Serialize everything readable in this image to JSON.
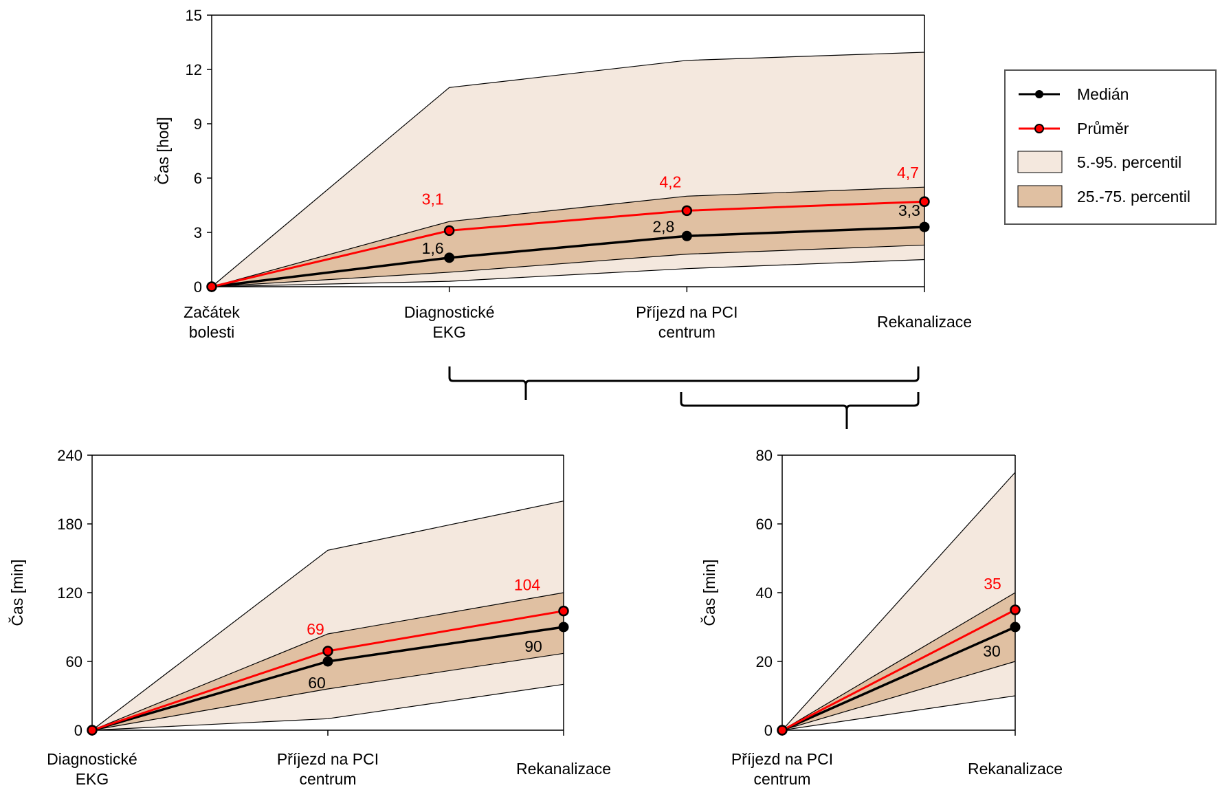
{
  "colors": {
    "band_outer": "#f4e8de",
    "band_inner": "#e0c0a2",
    "median": "#000000",
    "mean": "#ff0000",
    "axis": "#000000"
  },
  "legend": {
    "median": "Medián",
    "mean": "Průměr",
    "p5_95": "5.-95. percentil",
    "p25_75": "25.-75. percentil"
  },
  "chart_data": [
    {
      "type": "area",
      "ylabel": "Čas [hod]",
      "ylim": [
        0,
        15
      ],
      "yticks": [
        "0",
        "3",
        "6",
        "9",
        "12",
        "15"
      ],
      "categories": [
        [
          "Začátek",
          "bolesti"
        ],
        [
          "Diagnostické",
          "EKG"
        ],
        [
          "Příjezd na PCI",
          "centrum"
        ],
        [
          "Rekanalizace"
        ]
      ],
      "p5": [
        0,
        0.3,
        1.0,
        1.5
      ],
      "p95": [
        0,
        11.0,
        12.5,
        12.95
      ],
      "p25": [
        0,
        0.8,
        1.8,
        2.3
      ],
      "p75": [
        0,
        3.6,
        5.0,
        5.5
      ],
      "median": [
        0,
        1.6,
        2.8,
        3.3
      ],
      "mean": [
        0,
        3.1,
        4.2,
        4.7
      ],
      "median_labels": [
        "",
        "1,6",
        "2,8",
        "3,3"
      ],
      "mean_labels": [
        "",
        "3,1",
        "4,2",
        "4,7"
      ]
    },
    {
      "type": "area",
      "ylabel": "Čas [min]",
      "ylim": [
        0,
        240
      ],
      "yticks": [
        "0",
        "60",
        "120",
        "180",
        "240"
      ],
      "categories": [
        [
          "Diagnostické",
          "EKG"
        ],
        [
          "Příjezd na PCI",
          "centrum"
        ],
        [
          "Rekanalizace"
        ]
      ],
      "p5": [
        0,
        10,
        40
      ],
      "p95": [
        0,
        157,
        200
      ],
      "p25": [
        0,
        36,
        67
      ],
      "p75": [
        0,
        84,
        120
      ],
      "median": [
        0,
        60,
        90
      ],
      "mean": [
        0,
        69,
        104
      ],
      "median_labels": [
        "",
        "60",
        "90"
      ],
      "mean_labels": [
        "",
        "69",
        "104"
      ]
    },
    {
      "type": "area",
      "ylabel": "Čas [min]",
      "ylim": [
        0,
        80
      ],
      "yticks": [
        "0",
        "20",
        "40",
        "60",
        "80"
      ],
      "categories": [
        [
          "Příjezd na PCI",
          "centrum"
        ],
        [
          "Rekanalizace"
        ]
      ],
      "p5": [
        0,
        10
      ],
      "p95": [
        0,
        75
      ],
      "p25": [
        0,
        20
      ],
      "p75": [
        0,
        40
      ],
      "median": [
        0,
        30
      ],
      "mean": [
        0,
        35
      ],
      "median_labels": [
        "",
        "30"
      ],
      "mean_labels": [
        "",
        "35"
      ]
    }
  ]
}
